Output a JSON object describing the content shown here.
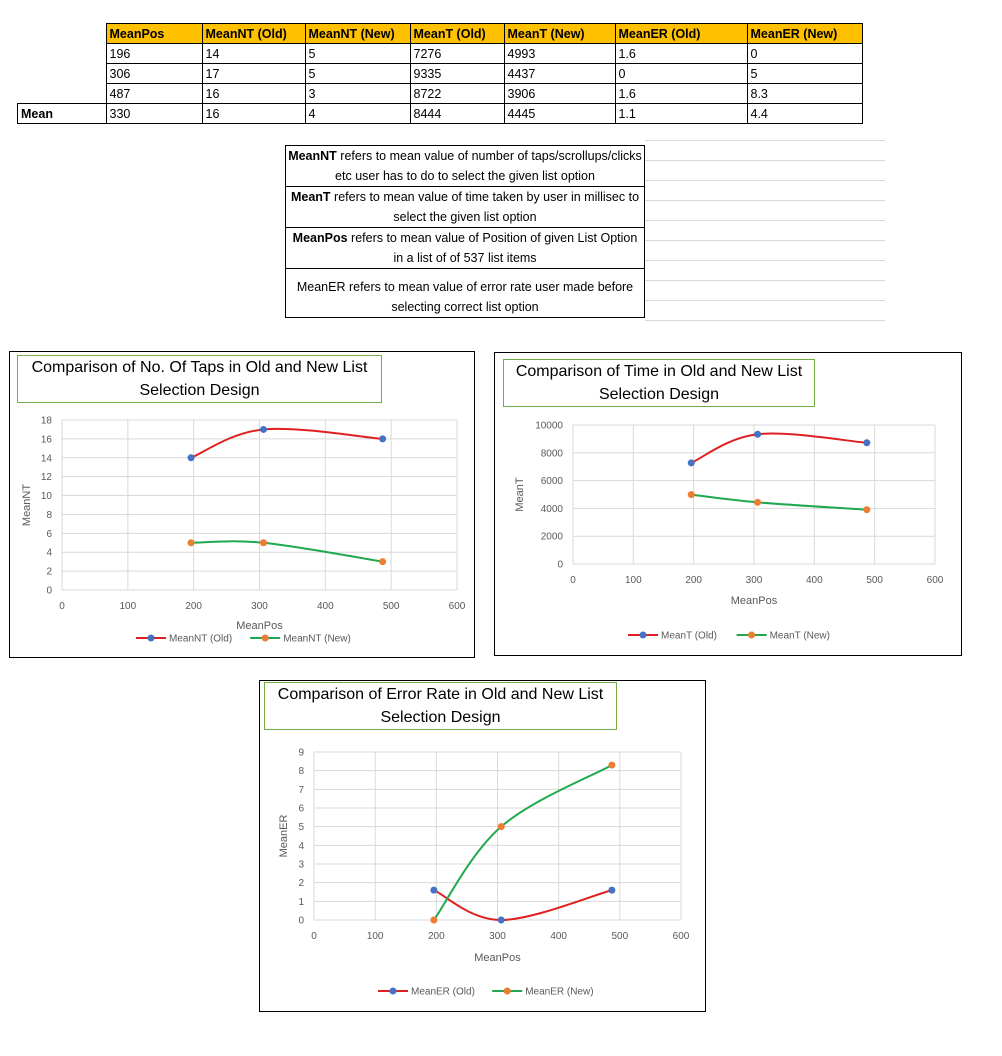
{
  "table": {
    "headers": [
      "MeanPos",
      "MeanNT (Old)",
      "MeanNT (New)",
      "MeanT (Old)",
      "MeanT (New)",
      "MeanER (Old)",
      "MeanER (New)"
    ],
    "rows": [
      [
        "196",
        "14",
        "5",
        "7276",
        "4993",
        "1.6",
        "0"
      ],
      [
        "306",
        "17",
        "5",
        "9335",
        "4437",
        "0",
        "5"
      ],
      [
        "487",
        "16",
        "3",
        "8722",
        "3906",
        "1.6",
        "8.3"
      ]
    ],
    "mean_label": "Mean",
    "mean_row": [
      "330",
      "16",
      "4",
      "8444",
      "4445",
      "1.1",
      "4.4"
    ]
  },
  "notes": [
    {
      "term": "MeanNT",
      "text": " refers to mean value of number of taps/scrollups/clicks etc user has to do to select the given list option"
    },
    {
      "term": "MeanT",
      "text": " refers to mean value of time taken  by user  in millisec to select the given list option"
    },
    {
      "term": "MeanPos",
      "text": " refers to mean value of Position of given List Option  in a list of of 537 list items"
    },
    {
      "term": "",
      "text": "MeanER refers to mean value of error rate user made before selecting correct list option"
    }
  ],
  "colors": {
    "old_line": "#e02020",
    "new_line": "#1fa84f",
    "old_marker": "#4472c4",
    "new_marker": "#ed7d31",
    "header_bg": "#ffc000",
    "title_border": "#70ad47"
  },
  "chart_data": [
    {
      "type": "scatter",
      "title": "Comparison of No. Of Taps in Old and New List Selection Design",
      "xlabel": "MeanPos",
      "ylabel": "MeanNT",
      "xlim": [
        0,
        600
      ],
      "ylim": [
        0,
        18
      ],
      "xticks": [
        0,
        100,
        200,
        300,
        400,
        500,
        600
      ],
      "yticks": [
        0,
        2,
        4,
        6,
        8,
        10,
        12,
        14,
        16,
        18
      ],
      "grid": true,
      "legend": "bottom",
      "x": [
        196,
        306,
        487
      ],
      "series": [
        {
          "name": "MeanNT (Old)",
          "values": [
            14,
            17,
            16
          ]
        },
        {
          "name": "MeanNT (New)",
          "values": [
            5,
            5,
            3
          ]
        }
      ]
    },
    {
      "type": "scatter",
      "title": "Comparison of Time in Old and New List Selection Design",
      "xlabel": "MeanPos",
      "ylabel": "MeanT",
      "xlim": [
        0,
        600
      ],
      "ylim": [
        0,
        10000
      ],
      "xticks": [
        0,
        100,
        200,
        300,
        400,
        500,
        600
      ],
      "yticks": [
        0,
        2000,
        4000,
        6000,
        8000,
        10000
      ],
      "grid": true,
      "legend": "bottom",
      "x": [
        196,
        306,
        487
      ],
      "series": [
        {
          "name": "MeanT (Old)",
          "values": [
            7276,
            9335,
            8722
          ]
        },
        {
          "name": "MeanT (New)",
          "values": [
            4993,
            4437,
            3906
          ]
        }
      ]
    },
    {
      "type": "scatter",
      "title": "Comparison of Error Rate in Old and New List Selection Design",
      "xlabel": "MeanPos",
      "ylabel": "MeanER",
      "xlim": [
        0,
        600
      ],
      "ylim": [
        0,
        9
      ],
      "xticks": [
        0,
        100,
        200,
        300,
        400,
        500,
        600
      ],
      "yticks": [
        0,
        1,
        2,
        3,
        4,
        5,
        6,
        7,
        8,
        9
      ],
      "grid": true,
      "legend": "bottom",
      "x": [
        196,
        306,
        487
      ],
      "series": [
        {
          "name": "MeanER (Old)",
          "values": [
            1.6,
            0,
            1.6
          ]
        },
        {
          "name": "MeanER (New)",
          "values": [
            0,
            5,
            8.3
          ]
        }
      ]
    }
  ]
}
